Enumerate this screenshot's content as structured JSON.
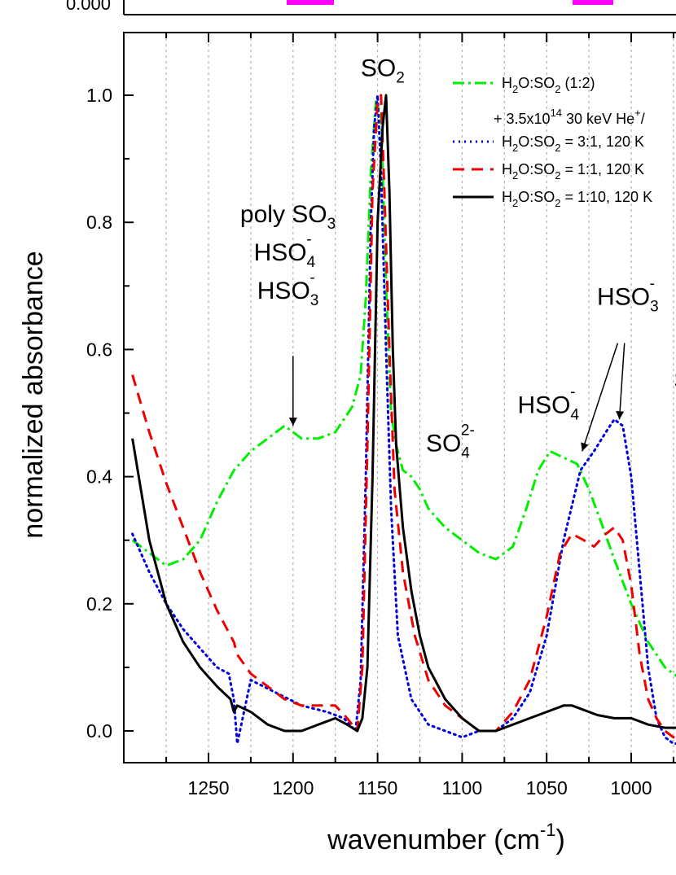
{
  "top_panel": {
    "tick_label": "0.000",
    "marker_color": "#ff00ff"
  },
  "chart_data": {
    "type": "line",
    "xlabel": "wavenumber (cm",
    "xlabel_sup": "-1",
    "xlabel_end": ")",
    "ylabel": "normalized absorbance",
    "xlim": [
      1295,
      970
    ],
    "ylim": [
      -0.055,
      1.09
    ],
    "x_reversed": true,
    "xticks": [
      1250,
      1200,
      1150,
      1100,
      1050,
      1000
    ],
    "yticks": [
      0.0,
      0.2,
      0.4,
      0.6,
      0.8,
      1.0
    ],
    "ytick_labels": [
      "0.0",
      "0.2",
      "0.4",
      "0.6",
      "0.8",
      "1.0"
    ],
    "grid": "vertical dotted",
    "legend_position": "top-right",
    "series": [
      {
        "name": "H2O:SO2 (1:2) + 3.5x10^14 30 keV He+/cm2",
        "legend": {
          "prefix": "H",
          "sub1": "2",
          "mid": "O:SO",
          "sub2": "2",
          "suffix": " (1:2)",
          "line2": "+ 3.5x10",
          "line2_sup": "14",
          "line2_rest": " 30 keV He",
          "line2_sup2": "+",
          "line2_end": "/"
        },
        "color": "#00ee00",
        "dash": "dashdot",
        "x": [
          1295,
          1285,
          1275,
          1265,
          1255,
          1245,
          1235,
          1225,
          1215,
          1205,
          1195,
          1185,
          1175,
          1165,
          1160,
          1157,
          1154,
          1151,
          1148,
          1145,
          1142,
          1139,
          1135,
          1130,
          1125,
          1120,
          1110,
          1100,
          1090,
          1080,
          1070,
          1062,
          1055,
          1048,
          1040,
          1032,
          1025,
          1018,
          1010,
          1000,
          990,
          980,
          970
        ],
        "y": [
          0.3,
          0.28,
          0.26,
          0.27,
          0.3,
          0.36,
          0.41,
          0.44,
          0.46,
          0.48,
          0.46,
          0.46,
          0.47,
          0.51,
          0.56,
          0.68,
          0.88,
          0.99,
          0.97,
          0.7,
          0.5,
          0.45,
          0.41,
          0.4,
          0.38,
          0.35,
          0.32,
          0.3,
          0.28,
          0.27,
          0.29,
          0.35,
          0.41,
          0.44,
          0.43,
          0.42,
          0.38,
          0.33,
          0.27,
          0.2,
          0.14,
          0.1,
          0.08
        ]
      },
      {
        "name": "H2O:SO2 = 3:1, 120 K",
        "legend": {
          "prefix": "H",
          "sub1": "2",
          "mid": "O:SO",
          "sub2": "2",
          "suffix": " = 3:1, 120 K"
        },
        "color": "#0000dd",
        "dash": "dotted",
        "x": [
          1295,
          1285,
          1275,
          1265,
          1255,
          1245,
          1238,
          1235,
          1233,
          1225,
          1210,
          1195,
          1180,
          1170,
          1163,
          1160,
          1157,
          1154,
          1152,
          1150,
          1148,
          1145,
          1142,
          1138,
          1130,
          1120,
          1110,
          1100,
          1090,
          1080,
          1070,
          1060,
          1050,
          1040,
          1030,
          1022,
          1015,
          1010,
          1005,
          1000,
          995,
          990,
          985,
          980,
          975,
          970
        ],
        "y": [
          0.31,
          0.25,
          0.2,
          0.16,
          0.13,
          0.1,
          0.09,
          0.05,
          -0.02,
          0.08,
          0.06,
          0.04,
          0.03,
          0.02,
          0.0,
          0.08,
          0.4,
          0.8,
          0.95,
          1.0,
          0.88,
          0.6,
          0.35,
          0.15,
          0.05,
          0.01,
          0.0,
          -0.01,
          0.0,
          0.0,
          0.02,
          0.06,
          0.15,
          0.3,
          0.41,
          0.44,
          0.47,
          0.49,
          0.48,
          0.4,
          0.25,
          0.1,
          0.02,
          -0.01,
          -0.02,
          -0.02
        ]
      },
      {
        "name": "H2O:SO2 = 1:1, 120 K",
        "legend": {
          "prefix": "H",
          "sub1": "2",
          "mid": "O:SO",
          "sub2": "2",
          "suffix": " = 1:1, 120 K"
        },
        "color": "#ee0000",
        "dash": "dashed",
        "x": [
          1295,
          1285,
          1275,
          1265,
          1255,
          1245,
          1237,
          1235,
          1233,
          1225,
          1215,
          1205,
          1195,
          1185,
          1175,
          1168,
          1162,
          1159,
          1156,
          1153,
          1150,
          1148,
          1146,
          1143,
          1140,
          1135,
          1128,
          1120,
          1110,
          1100,
          1090,
          1080,
          1070,
          1060,
          1050,
          1042,
          1035,
          1028,
          1022,
          1015,
          1010,
          1005,
          1000,
          995,
          990,
          985,
          980,
          975,
          970
        ],
        "y": [
          0.56,
          0.47,
          0.39,
          0.32,
          0.25,
          0.19,
          0.15,
          0.14,
          0.12,
          0.09,
          0.07,
          0.05,
          0.04,
          0.04,
          0.04,
          0.02,
          0.0,
          0.1,
          0.45,
          0.85,
          0.99,
          1.0,
          0.85,
          0.6,
          0.38,
          0.25,
          0.15,
          0.08,
          0.04,
          0.02,
          0.0,
          0.0,
          0.03,
          0.08,
          0.18,
          0.28,
          0.31,
          0.3,
          0.29,
          0.31,
          0.32,
          0.3,
          0.23,
          0.12,
          0.05,
          0.02,
          0.0,
          -0.01,
          -0.01
        ]
      },
      {
        "name": "H2O:SO2 = 1:10, 120 K",
        "legend": {
          "prefix": "H",
          "sub1": "2",
          "mid": "O:SO",
          "sub2": "2",
          "suffix": " = 1:10, 120 K"
        },
        "color": "#000000",
        "dash": "solid",
        "x": [
          1295,
          1285,
          1275,
          1265,
          1255,
          1245,
          1237,
          1235,
          1233,
          1225,
          1215,
          1205,
          1195,
          1185,
          1175,
          1168,
          1162,
          1159,
          1156,
          1153,
          1150,
          1147,
          1145,
          1143,
          1141,
          1139,
          1135,
          1130,
          1125,
          1120,
          1110,
          1100,
          1090,
          1080,
          1070,
          1060,
          1050,
          1040,
          1035,
          1030,
          1020,
          1010,
          1000,
          990,
          980,
          970
        ],
        "y": [
          0.46,
          0.3,
          0.2,
          0.14,
          0.1,
          0.07,
          0.05,
          0.03,
          0.04,
          0.03,
          0.01,
          0.0,
          0.0,
          0.01,
          0.02,
          0.01,
          0.0,
          0.02,
          0.1,
          0.4,
          0.8,
          0.95,
          1.0,
          0.85,
          0.6,
          0.45,
          0.32,
          0.22,
          0.15,
          0.1,
          0.05,
          0.02,
          0.0,
          0.0,
          0.01,
          0.02,
          0.03,
          0.04,
          0.04,
          0.035,
          0.025,
          0.02,
          0.02,
          0.01,
          0.005,
          0.005
        ]
      }
    ],
    "annotations": [
      {
        "parts": [
          [
            "SO",
            ""
          ],
          [
            "2",
            "sub"
          ]
        ],
        "x": 1147,
        "y": 1.03
      },
      {
        "parts": [
          [
            "poly SO",
            ""
          ],
          [
            "3",
            "sub"
          ]
        ],
        "x": 1203,
        "y": 0.8
      },
      {
        "parts": [
          [
            "HSO",
            ""
          ],
          [
            "4",
            "sub"
          ],
          [
            "-",
            "sup"
          ]
        ],
        "x": 1205,
        "y": 0.74
      },
      {
        "parts": [
          [
            "HSO",
            ""
          ],
          [
            "3",
            "sub"
          ],
          [
            "-",
            "sup"
          ]
        ],
        "x": 1203,
        "y": 0.68
      },
      {
        "parts": [
          [
            "SO",
            ""
          ],
          [
            "4",
            "sub"
          ],
          [
            "2-",
            "sup"
          ]
        ],
        "x": 1107,
        "y": 0.44
      },
      {
        "parts": [
          [
            "HSO",
            ""
          ],
          [
            "4",
            "sub"
          ],
          [
            "-",
            "sup"
          ]
        ],
        "x": 1049,
        "y": 0.5
      },
      {
        "parts": [
          [
            "HSO",
            ""
          ],
          [
            "3",
            "sub"
          ],
          [
            "-",
            "sup"
          ]
        ],
        "x": 1002,
        "y": 0.67
      },
      {
        "parts": [
          [
            "S",
            ""
          ]
        ],
        "x": 970,
        "y": 0.54
      }
    ],
    "arrows": [
      {
        "from": [
          1200,
          0.59
        ],
        "to": [
          1200,
          0.48
        ]
      },
      {
        "from": [
          1008,
          0.61
        ],
        "to": [
          1029,
          0.44
        ]
      },
      {
        "from": [
          1004,
          0.61
        ],
        "to": [
          1007,
          0.49
        ]
      }
    ]
  }
}
